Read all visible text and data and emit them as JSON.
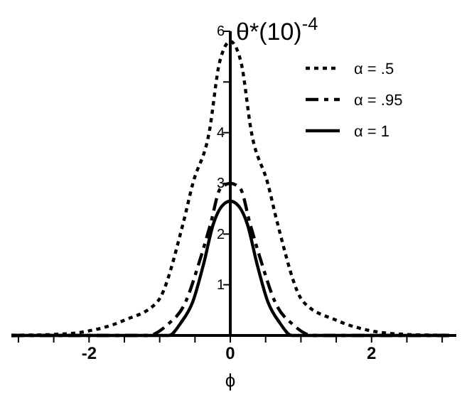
{
  "chart_data": {
    "type": "line",
    "ylabel": "θ*(10)$^{-4}$",
    "xlabel": "ϕ",
    "x": [
      -3.1,
      -2.5,
      -2.08,
      -1.5,
      -1.03,
      -0.67,
      -0.53,
      -0.3,
      -0.15,
      0,
      0.15,
      0.3,
      0.53,
      0.67,
      1.03,
      1.5,
      2.08,
      2.5,
      3.1
    ],
    "series": [
      {
        "name": "α = .5",
        "color": "#000000",
        "line_style": "dotted",
        "values": [
          0,
          0.02,
          0.07,
          0.3,
          0.67,
          2.2,
          3,
          4,
          5.4,
          5.8,
          5.4,
          4,
          3,
          2.2,
          0.67,
          0.3,
          0.07,
          0.02,
          0
        ]
      },
      {
        "name": "α = .95",
        "color": "#000000",
        "line_style": "dashed",
        "x": [
          -3.1,
          -1.17,
          -0.9,
          -0.63,
          -0.45,
          -0.28,
          -0.14,
          0,
          0.14,
          0.28,
          0.45,
          0.63,
          0.9,
          1.17,
          3.1
        ],
        "values": [
          0,
          0,
          0.2,
          0.67,
          1.4,
          2.2,
          2.9,
          3,
          2.9,
          2.2,
          1.4,
          0.67,
          0.2,
          0,
          0
        ]
      },
      {
        "name": "α = 1",
        "color": "#000000",
        "line_style": "solid",
        "x": [
          -3.1,
          -0.87,
          -0.7,
          -0.53,
          -0.38,
          -0.24,
          -0.12,
          0,
          0.12,
          0.24,
          0.38,
          0.53,
          0.7,
          0.87,
          3.1
        ],
        "values": [
          0,
          0,
          0.25,
          0.67,
          1.4,
          2.2,
          2.55,
          2.65,
          2.55,
          2.2,
          1.4,
          0.67,
          0.25,
          0,
          0
        ]
      }
    ],
    "xlim": [
      -3.1,
      3.2
    ],
    "ylim": [
      0,
      6
    ],
    "xticks": [
      {
        "value": -3,
        "label": null
      },
      {
        "value": -2.5,
        "label": null
      },
      -2,
      {
        "value": -1.5,
        "label": null
      },
      {
        "value": -1,
        "label": null
      },
      {
        "value": -0.5,
        "label": null
      },
      0,
      {
        "value": 0.5,
        "label": null
      },
      {
        "value": 1,
        "label": null
      },
      {
        "value": 1.5,
        "label": null
      },
      2,
      {
        "value": 2.5,
        "label": null
      },
      {
        "value": 3,
        "label": null
      }
    ],
    "yticks": [
      1,
      2,
      3,
      4,
      {
        "value": 5,
        "label": null
      },
      6
    ],
    "legend": "top right",
    "grid": false
  }
}
